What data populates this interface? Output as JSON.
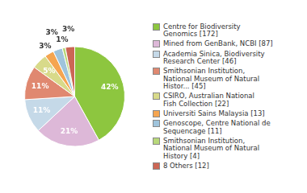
{
  "chart_data": {
    "type": "pie",
    "categories": [
      "Centre for Biodiversity\nGenomics [172]",
      "Mined from GenBank, NCBI [87]",
      "Academia Sinica, Biodiversity\nResearch Center [46]",
      "Smithsonian Institution,\nNational Museum of Natural\nHistor... [45]",
      "CSIRO, Australian National\nFish Collection [22]",
      "Universiti Sains Malaysia [13]",
      "Genoscope, Centre National de\nSequencage [11]",
      "Smithsonian Institution,\nNational Museum of Natural\nHistory [4]",
      "8 Others [12]"
    ],
    "values": [
      42,
      21,
      11,
      11,
      5,
      3,
      3,
      1,
      3
    ],
    "value_labels": [
      "42%",
      "21%",
      "11%",
      "11%",
      "5%",
      "3%",
      "3%",
      "1%",
      "3%"
    ],
    "colors": [
      "#8dc63f",
      "#ddb8d8",
      "#c5d9e8",
      "#e08870",
      "#d8da8a",
      "#f5a550",
      "#9fc4dc",
      "#b8d87a",
      "#cc6655"
    ],
    "data_labels": true,
    "legend": "right"
  }
}
